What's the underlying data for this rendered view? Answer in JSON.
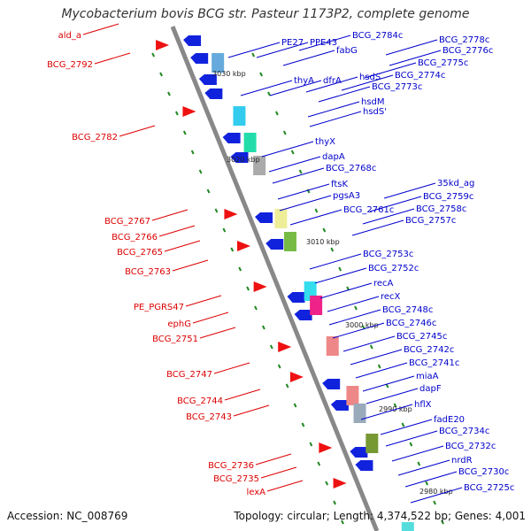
{
  "title": "Mycobacterium bovis BCG str. Pasteur 1173P2, complete genome",
  "footer": {
    "accession": "Accession: NC_008769",
    "summary": "Topology: circular; Length: 4,374,522 bp; Genes: 4,001"
  },
  "colors": {
    "forward_label": "#dd0000",
    "reverse_label": "#0000cc",
    "backbone": "#888888",
    "forward_gene": "#ee1111",
    "reverse_gene": "#1122dd",
    "tick": "#228822"
  },
  "kbp_ticks": [
    "3030 kbp",
    "3020 kbp",
    "3010 kbp",
    "3000 kbp",
    "2990 kbp",
    "2980 kbp"
  ],
  "left_labels": [
    "ald_a",
    "BCG_2792",
    "BCG_2782",
    "BCG_2767",
    "BCG_2766",
    "BCG_2765",
    "BCG_2763",
    "PE_PGRS47",
    "ephG",
    "BCG_2751",
    "BCG_2747",
    "BCG_2744",
    "BCG_2743",
    "BCG_2736",
    "BCG_2735",
    "lexA"
  ],
  "right_labels": [
    "BCG_2784c",
    "BCG_2778c",
    "PE27",
    "PPE43",
    "BCG_2776c",
    "fabG",
    "BCG_2775c",
    "thyA",
    "dfrA",
    "hsdS",
    "BCG_2774c",
    "BCG_2773c",
    "hsdM",
    "hsdS'",
    "thyX",
    "dapA",
    "BCG_2768c",
    "ftsK",
    "35kd_ag",
    "pgsA3",
    "BCG_2759c",
    "BCG_2761c",
    "BCG_2758c",
    "BCG_2757c",
    "BCG_2753c",
    "BCG_2752c",
    "recA",
    "recX",
    "BCG_2748c",
    "BCG_2746c",
    "BCG_2745c",
    "BCG_2742c",
    "BCG_2741c",
    "miaA",
    "dapF",
    "hflX",
    "fadE20",
    "BCG_2734c",
    "BCG_2732c",
    "nrdR",
    "BCG_2730c",
    "BCG_2725c"
  ]
}
